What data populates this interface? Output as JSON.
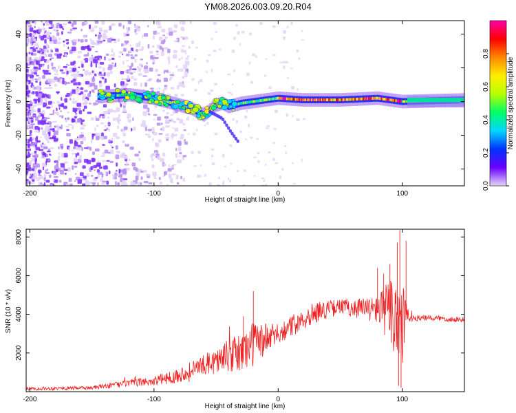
{
  "title": "YM08.2026.003.09.20.R04",
  "spectrogram": {
    "type": "heatmap",
    "xlabel": "Height of straight line (km)",
    "ylabel": "Frequency (Hz)",
    "xlim": [
      -203,
      150
    ],
    "ylim": [
      -50,
      48
    ],
    "xticks": [
      -200,
      -100,
      0,
      100
    ],
    "xtick_labels": [
      "-200",
      "-100",
      "0",
      "100"
    ],
    "yticks": [
      -40,
      -20,
      0,
      20,
      40
    ],
    "ytick_labels": [
      "-40",
      "-20",
      "0",
      "20",
      "40"
    ],
    "colorbar": {
      "label": "Normalized spectral amplitude",
      "range": [
        0,
        1
      ],
      "ticks": [
        0.0,
        0.2,
        0.4,
        0.6,
        0.8
      ],
      "tick_labels": [
        "0.0",
        "0.2",
        "0.4",
        "0.6",
        "0.8"
      ],
      "colors": [
        "#e6d8f8",
        "#6a00ff",
        "#0033ff",
        "#00d8ff",
        "#00ff66",
        "#b8ff00",
        "#ffee00",
        "#ff8800",
        "#ff0000",
        "#ff00aa"
      ]
    },
    "ridge": {
      "description": "frequency ridge (Hz) vs height (km)",
      "x": [
        -145,
        -120,
        -100,
        -90,
        -80,
        -70,
        -60,
        -50,
        -45,
        -40,
        -30,
        -20,
        -10,
        0,
        20,
        50,
        80,
        90,
        100,
        150
      ],
      "y": [
        3,
        4,
        2,
        0,
        -2,
        -4,
        -8,
        -2,
        -1,
        -3,
        -1,
        0,
        1,
        2,
        1,
        1,
        2,
        1,
        0,
        1
      ]
    },
    "branch": {
      "x": [
        -55,
        -45,
        -38,
        -32
      ],
      "y": [
        -6,
        -10,
        -18,
        -24
      ]
    }
  },
  "snr": {
    "type": "line",
    "xlabel": "Height of straight line (km)",
    "ylabel": "SNR (10 * v/v)",
    "xlim": [
      -203,
      150
    ],
    "ylim": [
      0,
      8400
    ],
    "xticks": [
      -200,
      -100,
      0,
      100
    ],
    "xtick_labels": [
      "-200",
      "-100",
      "0",
      "100"
    ],
    "yticks": [
      2000,
      4000,
      6000,
      8000
    ],
    "ytick_labels": [
      "2000",
      "4000",
      "6000",
      "8000"
    ],
    "line_color": "#ee2222",
    "envelope": {
      "x": [
        -203,
        -150,
        -125,
        -100,
        -80,
        -60,
        -45,
        -30,
        -20,
        -10,
        0,
        10,
        20,
        30,
        50,
        70,
        85,
        95,
        100,
        104,
        110,
        130,
        150
      ],
      "y": [
        150,
        200,
        400,
        550,
        850,
        1400,
        1700,
        2000,
        2500,
        2700,
        3000,
        3350,
        3800,
        4100,
        4400,
        4300,
        4200,
        4000,
        3800,
        3900,
        3800,
        3800,
        3700
      ]
    },
    "noise": {
      "x": [
        -203,
        -150,
        -100,
        -60,
        -40,
        -20,
        0,
        20,
        50,
        80,
        90,
        95,
        100,
        104,
        110,
        150
      ],
      "y": [
        80,
        100,
        250,
        500,
        900,
        1200,
        500,
        600,
        400,
        700,
        1800,
        2800,
        3000,
        400,
        150,
        150
      ]
    },
    "spikes": [
      {
        "x": -20,
        "y": 5200
      },
      {
        "x": -28,
        "y": 3900
      },
      {
        "x": 80,
        "y": 6400
      },
      {
        "x": 85,
        "y": 6100
      },
      {
        "x": 90,
        "y": 6600
      },
      {
        "x": 96,
        "y": 7700
      },
      {
        "x": 98,
        "y": 8350
      },
      {
        "x": 103,
        "y": 7800
      },
      {
        "x": 99,
        "y": 200
      },
      {
        "x": 97,
        "y": 300
      }
    ]
  }
}
